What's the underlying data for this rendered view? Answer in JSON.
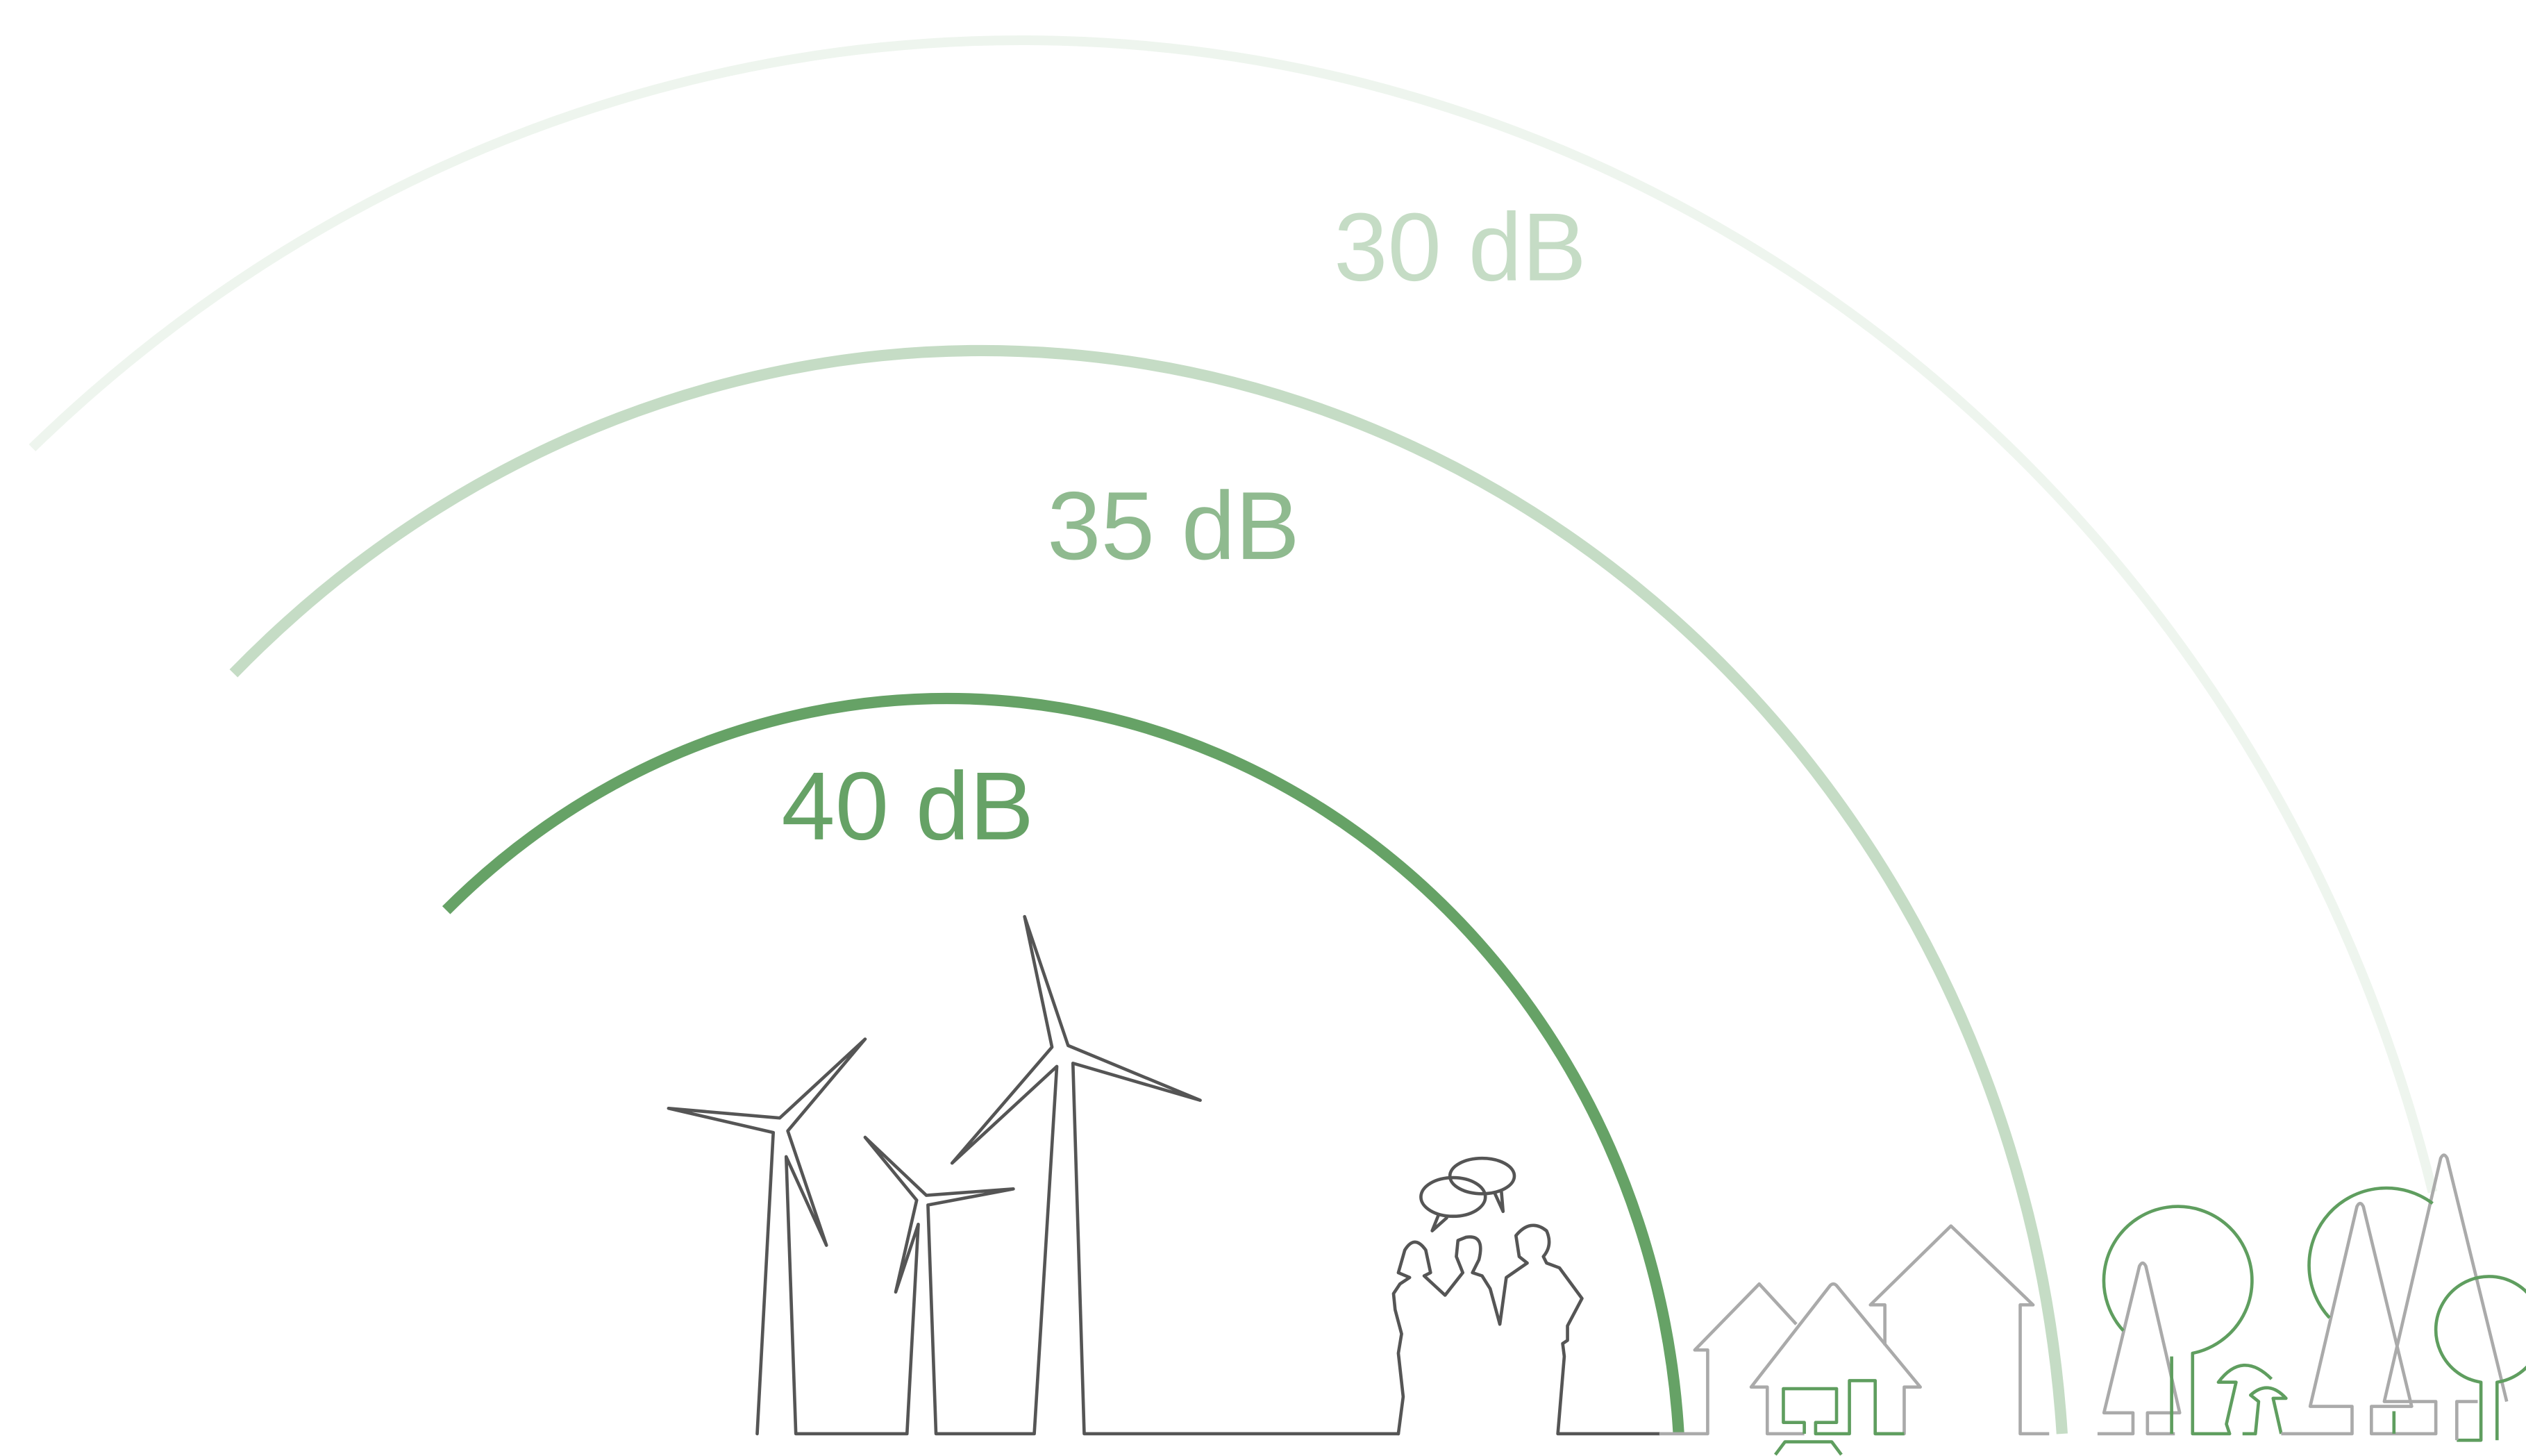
{
  "labels": {
    "outer": "30 dB",
    "middle": "35 dB",
    "inner": "40 dB"
  }
}
